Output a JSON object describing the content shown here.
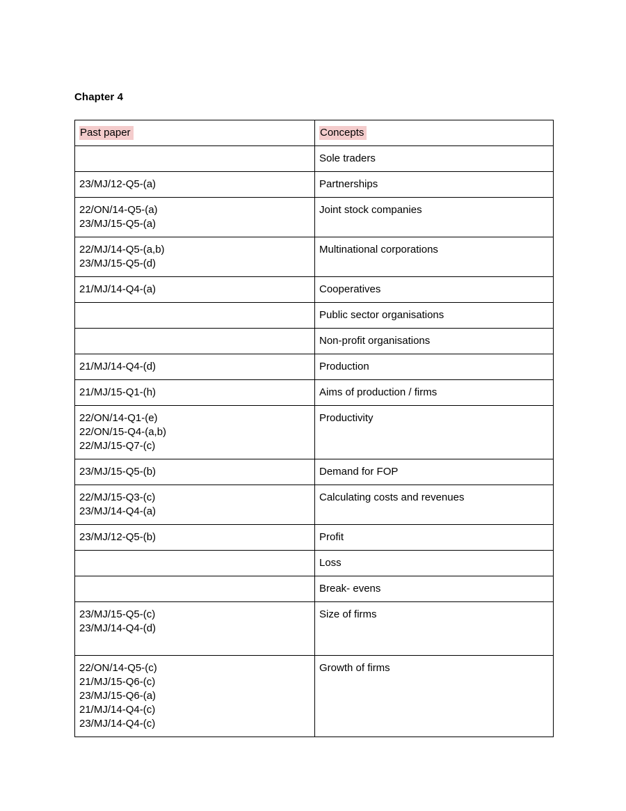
{
  "document": {
    "heading": "Chapter 4"
  },
  "table": {
    "columns": [
      {
        "label": "Past paper"
      },
      {
        "label": "Concepts"
      }
    ],
    "header_highlight_color": "#f4cccc",
    "border_color": "#000000",
    "rows": [
      {
        "past_papers": [],
        "concept": "Sole traders"
      },
      {
        "past_papers": [
          "23/MJ/12-Q5-(a)"
        ],
        "concept": "Partnerships"
      },
      {
        "past_papers": [
          "22/ON/14-Q5-(a)",
          "23/MJ/15-Q5-(a)"
        ],
        "concept": "Joint stock companies"
      },
      {
        "past_papers": [
          "22/MJ/14-Q5-(a,b)",
          "23/MJ/15-Q5-(d)"
        ],
        "concept": "Multinational corporations"
      },
      {
        "past_papers": [
          "21/MJ/14-Q4-(a)"
        ],
        "concept": "Cooperatives"
      },
      {
        "past_papers": [],
        "concept": "Public sector organisations"
      },
      {
        "past_papers": [],
        "concept": "Non-profit organisations"
      },
      {
        "past_papers": [
          "21/MJ/14-Q4-(d)"
        ],
        "concept": "Production"
      },
      {
        "past_papers": [
          "21/MJ/15-Q1-(h)"
        ],
        "concept": "Aims of production / firms"
      },
      {
        "past_papers": [
          "22/ON/14-Q1-(e)",
          "22/ON/15-Q4-(a,b)",
          "22/MJ/15-Q7-(c)"
        ],
        "concept": "Productivity"
      },
      {
        "past_papers": [
          "23/MJ/15-Q5-(b)"
        ],
        "concept": "Demand for FOP"
      },
      {
        "past_papers": [
          "22/MJ/15-Q3-(c)",
          "23/MJ/14-Q4-(a)"
        ],
        "concept": "Calculating costs and revenues"
      },
      {
        "past_papers": [
          "23/MJ/12-Q5-(b)"
        ],
        "concept": "Profit"
      },
      {
        "past_papers": [],
        "concept": "Loss"
      },
      {
        "past_papers": [],
        "concept": "Break- evens"
      },
      {
        "past_papers": [
          "23/MJ/15-Q5-(c)",
          "23/MJ/14-Q4-(d)",
          ""
        ],
        "concept": "Size of firms"
      },
      {
        "past_papers": [
          "22/ON/14-Q5-(c)",
          "21/MJ/15-Q6-(c)",
          "23/MJ/15-Q6-(a)",
          "21/MJ/14-Q4-(c)",
          "23/MJ/14-Q4-(c)"
        ],
        "concept": "Growth of firms"
      }
    ]
  }
}
